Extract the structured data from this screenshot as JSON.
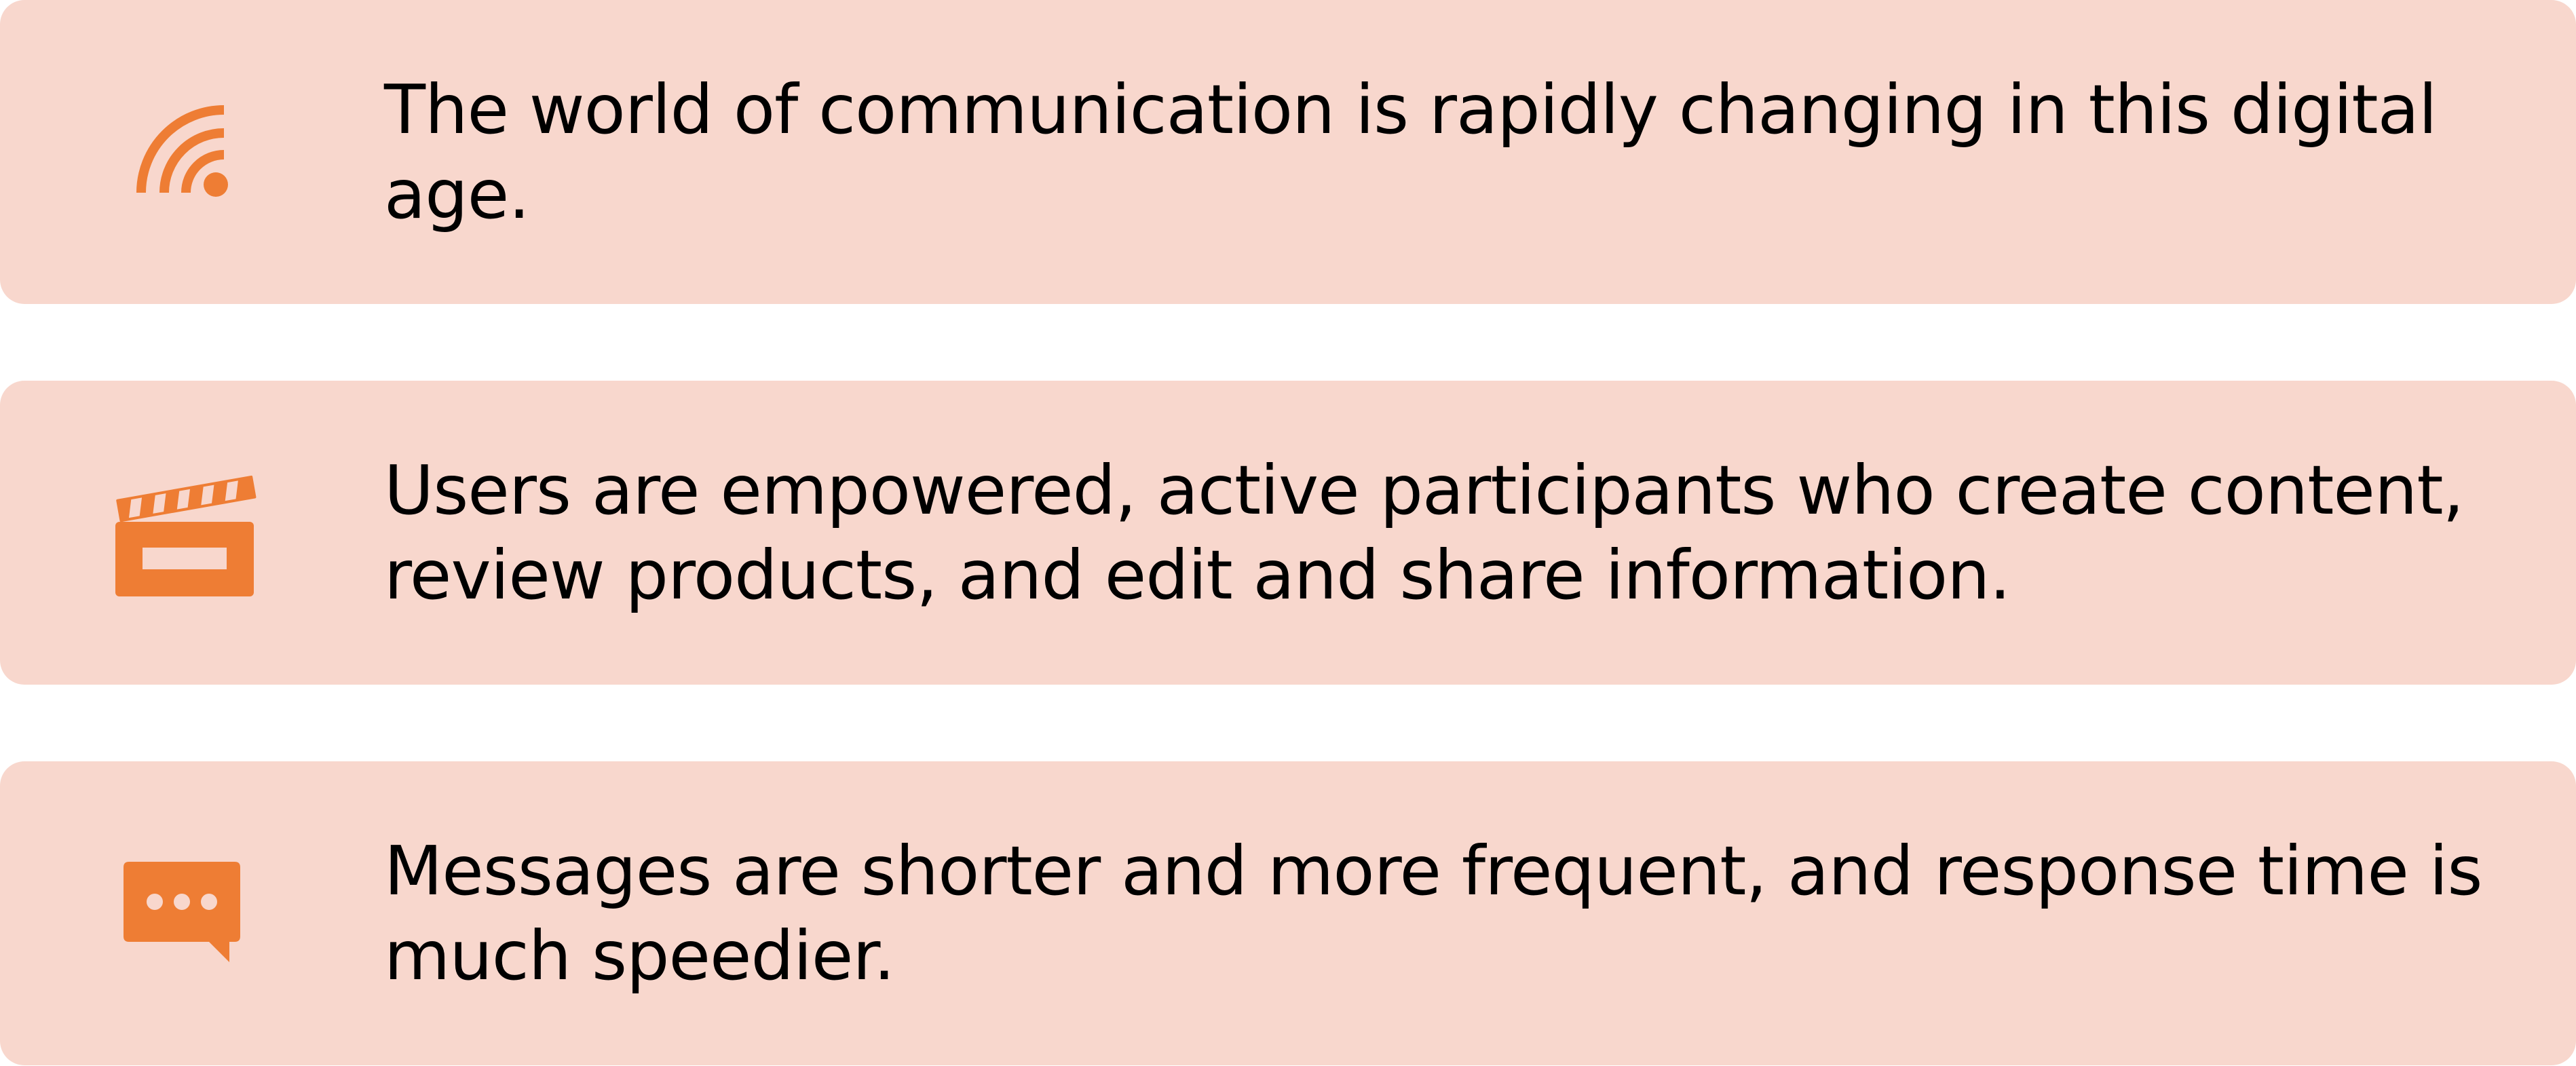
{
  "colors": {
    "card_background": "#f8d7cd",
    "icon_color": "#ee7d34",
    "text_color": "#000000"
  },
  "items": [
    {
      "icon": "rss-feed-icon",
      "text": "The world of communication is rapidly changing in this digital age."
    },
    {
      "icon": "clapperboard-icon",
      "text": "Users are empowered, active participants who create content, review products, and edit and share information."
    },
    {
      "icon": "chat-bubble-icon",
      "text": "Messages are shorter and more frequent, and response time is much speedier."
    }
  ]
}
